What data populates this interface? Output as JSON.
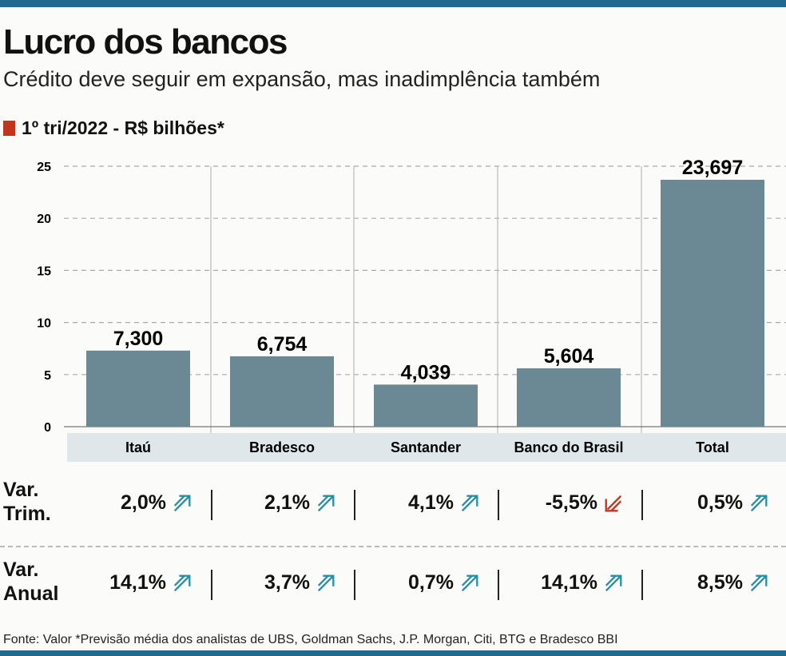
{
  "title": "Lucro dos bancos",
  "subtitle": "Crédito deve seguir em expansão, mas inadimplência também",
  "chart_data": {
    "type": "bar",
    "legend": "1º tri/2022 - R$ bilhões*",
    "categories": [
      "Itaú",
      "Bradesco",
      "Santander",
      "Banco do Brasil",
      "Total"
    ],
    "values": [
      7.3,
      6.754,
      4.039,
      5.604,
      23.697
    ],
    "value_labels": [
      "7,300",
      "6,754",
      "4,039",
      "5,604",
      "23,697"
    ],
    "ylim": [
      0,
      25
    ],
    "yticks": [
      0,
      5,
      10,
      15,
      20,
      25
    ],
    "grid": true,
    "bar_color": "#6b8895"
  },
  "table": {
    "rows": [
      {
        "label_1": "Var.",
        "label_2": "Trim.",
        "values": [
          "2,0%",
          "2,1%",
          "4,1%",
          "-5,5%",
          "0,5%"
        ],
        "directions": [
          "up",
          "up",
          "up",
          "down",
          "up"
        ]
      },
      {
        "label_1": "Var.",
        "label_2": "Anual",
        "values": [
          "14,1%",
          "3,7%",
          "0,7%",
          "14,1%",
          "8,5%"
        ],
        "directions": [
          "up",
          "up",
          "up",
          "up",
          "up"
        ]
      }
    ],
    "up_color": "#2a8ea3",
    "down_color": "#c0361c"
  },
  "source": "Fonte: Valor *Previsão média dos analistas de UBS, Goldman Sachs, J.P. Morgan, Citi, BTG e Bradesco BBI"
}
